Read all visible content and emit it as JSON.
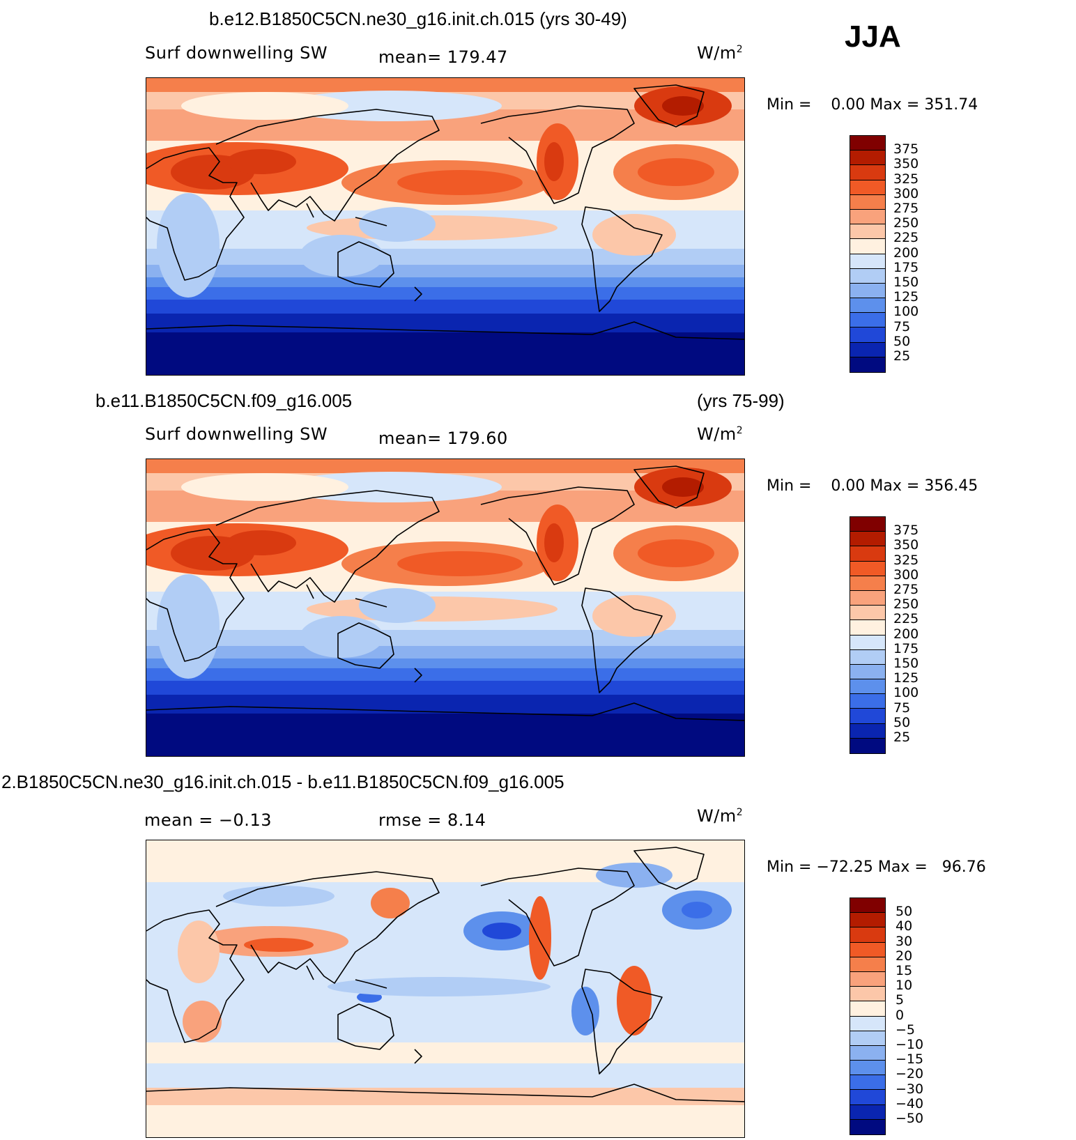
{
  "season": "JJA",
  "chart_data": [
    {
      "type": "heatmap",
      "title": "b.e12.B1850C5CN.ne30_g16.init.ch.015 (yrs 30-49)",
      "title_right": "",
      "variable": "Surf downwelling SW",
      "stat_label": "mean= 179.47",
      "units_base": "W/m",
      "units_exp": "2",
      "min_max": "Min =    0.00 Max = 351.74",
      "colorbar_levels": [
        "375",
        "350",
        "325",
        "300",
        "275",
        "250",
        "225",
        "200",
        "175",
        "150",
        "125",
        "100",
        "75",
        "50",
        "25"
      ],
      "colorbar_colors": [
        "#800000",
        "#b31c00",
        "#d93a10",
        "#f05a26",
        "#f57f4b",
        "#f9a27c",
        "#fcc7a9",
        "#fff1e0",
        "#d6e6fa",
        "#b1cdf5",
        "#8bb1f0",
        "#5d90ec",
        "#3b6ee8",
        "#2048d8",
        "#0a25b0",
        "#000a80"
      ],
      "field": "sw"
    },
    {
      "type": "heatmap",
      "title": "b.e11.B1850C5CN.f09_g16.005",
      "title_right": "(yrs 75-99)",
      "variable": "Surf downwelling SW",
      "stat_label": "mean= 179.60",
      "units_base": "W/m",
      "units_exp": "2",
      "min_max": "Min =    0.00 Max = 356.45",
      "colorbar_levels": [
        "375",
        "350",
        "325",
        "300",
        "275",
        "250",
        "225",
        "200",
        "175",
        "150",
        "125",
        "100",
        "75",
        "50",
        "25"
      ],
      "colorbar_colors": [
        "#800000",
        "#b31c00",
        "#d93a10",
        "#f05a26",
        "#f57f4b",
        "#f9a27c",
        "#fcc7a9",
        "#fff1e0",
        "#d6e6fa",
        "#b1cdf5",
        "#8bb1f0",
        "#5d90ec",
        "#3b6ee8",
        "#2048d8",
        "#0a25b0",
        "#000a80"
      ],
      "field": "sw"
    },
    {
      "type": "heatmap",
      "title": "2.B1850C5CN.ne30_g16.init.ch.015 - b.e11.B1850C5CN.f09_g16.005",
      "title_right": "",
      "variable": "mean =   −0.13",
      "stat_label": "rmse =    8.14",
      "units_base": "W/m",
      "units_exp": "2",
      "min_max": "Min = −72.25 Max =   96.76",
      "colorbar_levels": [
        "50",
        "40",
        "30",
        "20",
        "15",
        "10",
        "5",
        "0",
        "−5",
        "−10",
        "−15",
        "−20",
        "−30",
        "−40",
        "−50"
      ],
      "colorbar_colors": [
        "#800000",
        "#b31c00",
        "#d93a10",
        "#f05a26",
        "#f57f4b",
        "#f9a27c",
        "#fcc7a9",
        "#fff1e0",
        "#d6e6fa",
        "#b1cdf5",
        "#8bb1f0",
        "#5d90ec",
        "#3b6ee8",
        "#2048d8",
        "#0a25b0",
        "#000a80"
      ],
      "field": "diff"
    }
  ]
}
